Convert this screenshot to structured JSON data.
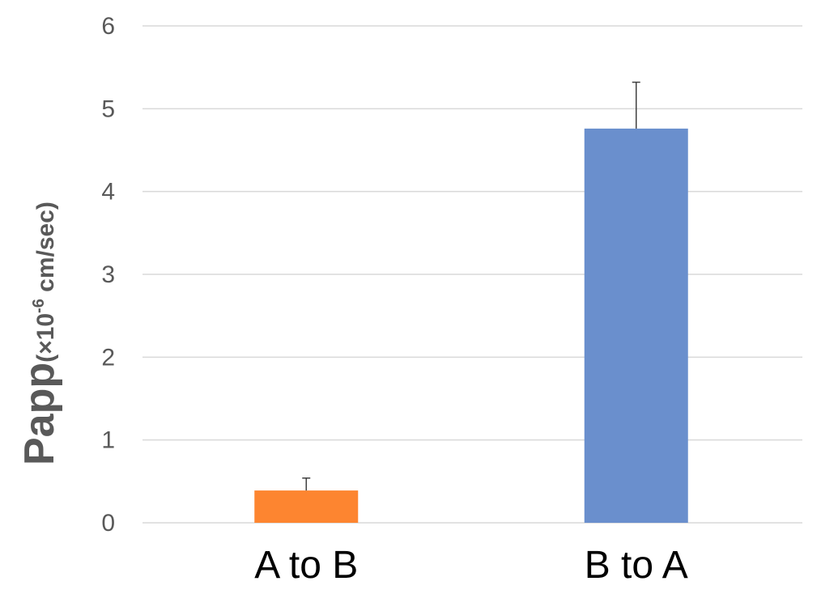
{
  "chart_data": {
    "type": "bar",
    "categories": [
      "A to B",
      "B to A"
    ],
    "values": [
      0.39,
      4.76
    ],
    "error": [
      0.15,
      0.56
    ],
    "colors": [
      "#fd8530",
      "#6a8fcd"
    ],
    "title": "",
    "xlabel": "",
    "ylabel": "Papp",
    "ylabel_unit": "(×10",
    "ylabel_exponent": "-6",
    "ylabel_unit_rest": " cm/sec)",
    "ylim": [
      0,
      6
    ],
    "yticks": [
      "0",
      "1",
      "2",
      "3",
      "4",
      "5",
      "6"
    ],
    "grid": true
  }
}
